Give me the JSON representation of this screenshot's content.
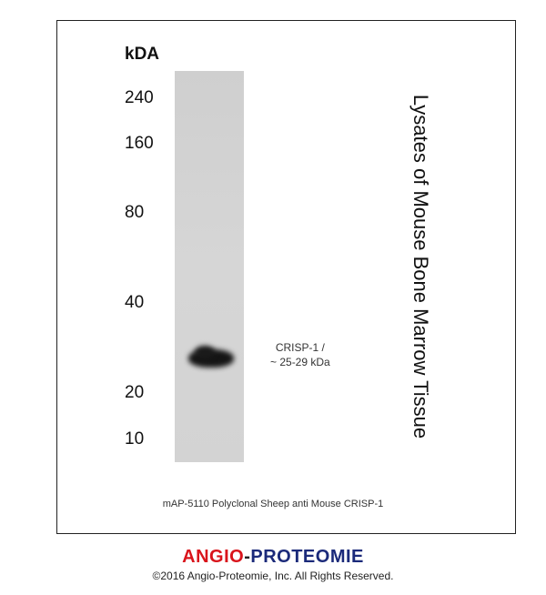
{
  "blot": {
    "unit_label": "kDA",
    "markers": [
      "240",
      "160",
      "80",
      "40",
      "20",
      "10"
    ],
    "band_label_line1": "CRISP-1 /",
    "band_label_line2": "~ 25-29 kDa",
    "sample_label": "Lysates of Mouse Bone Marrow Tissue",
    "caption": "mAP-5110 Polyclonal Sheep anti Mouse CRISP-1"
  },
  "footer": {
    "brand_part1": "ANGIO",
    "brand_sep": "-",
    "brand_part2": "PROTEOMIE",
    "copyright": "©2016 Angio-Proteomie, Inc.  All Rights Reserved.",
    "colors": {
      "brand_red": "#d9141b",
      "brand_navy": "#1b2a7a"
    }
  }
}
